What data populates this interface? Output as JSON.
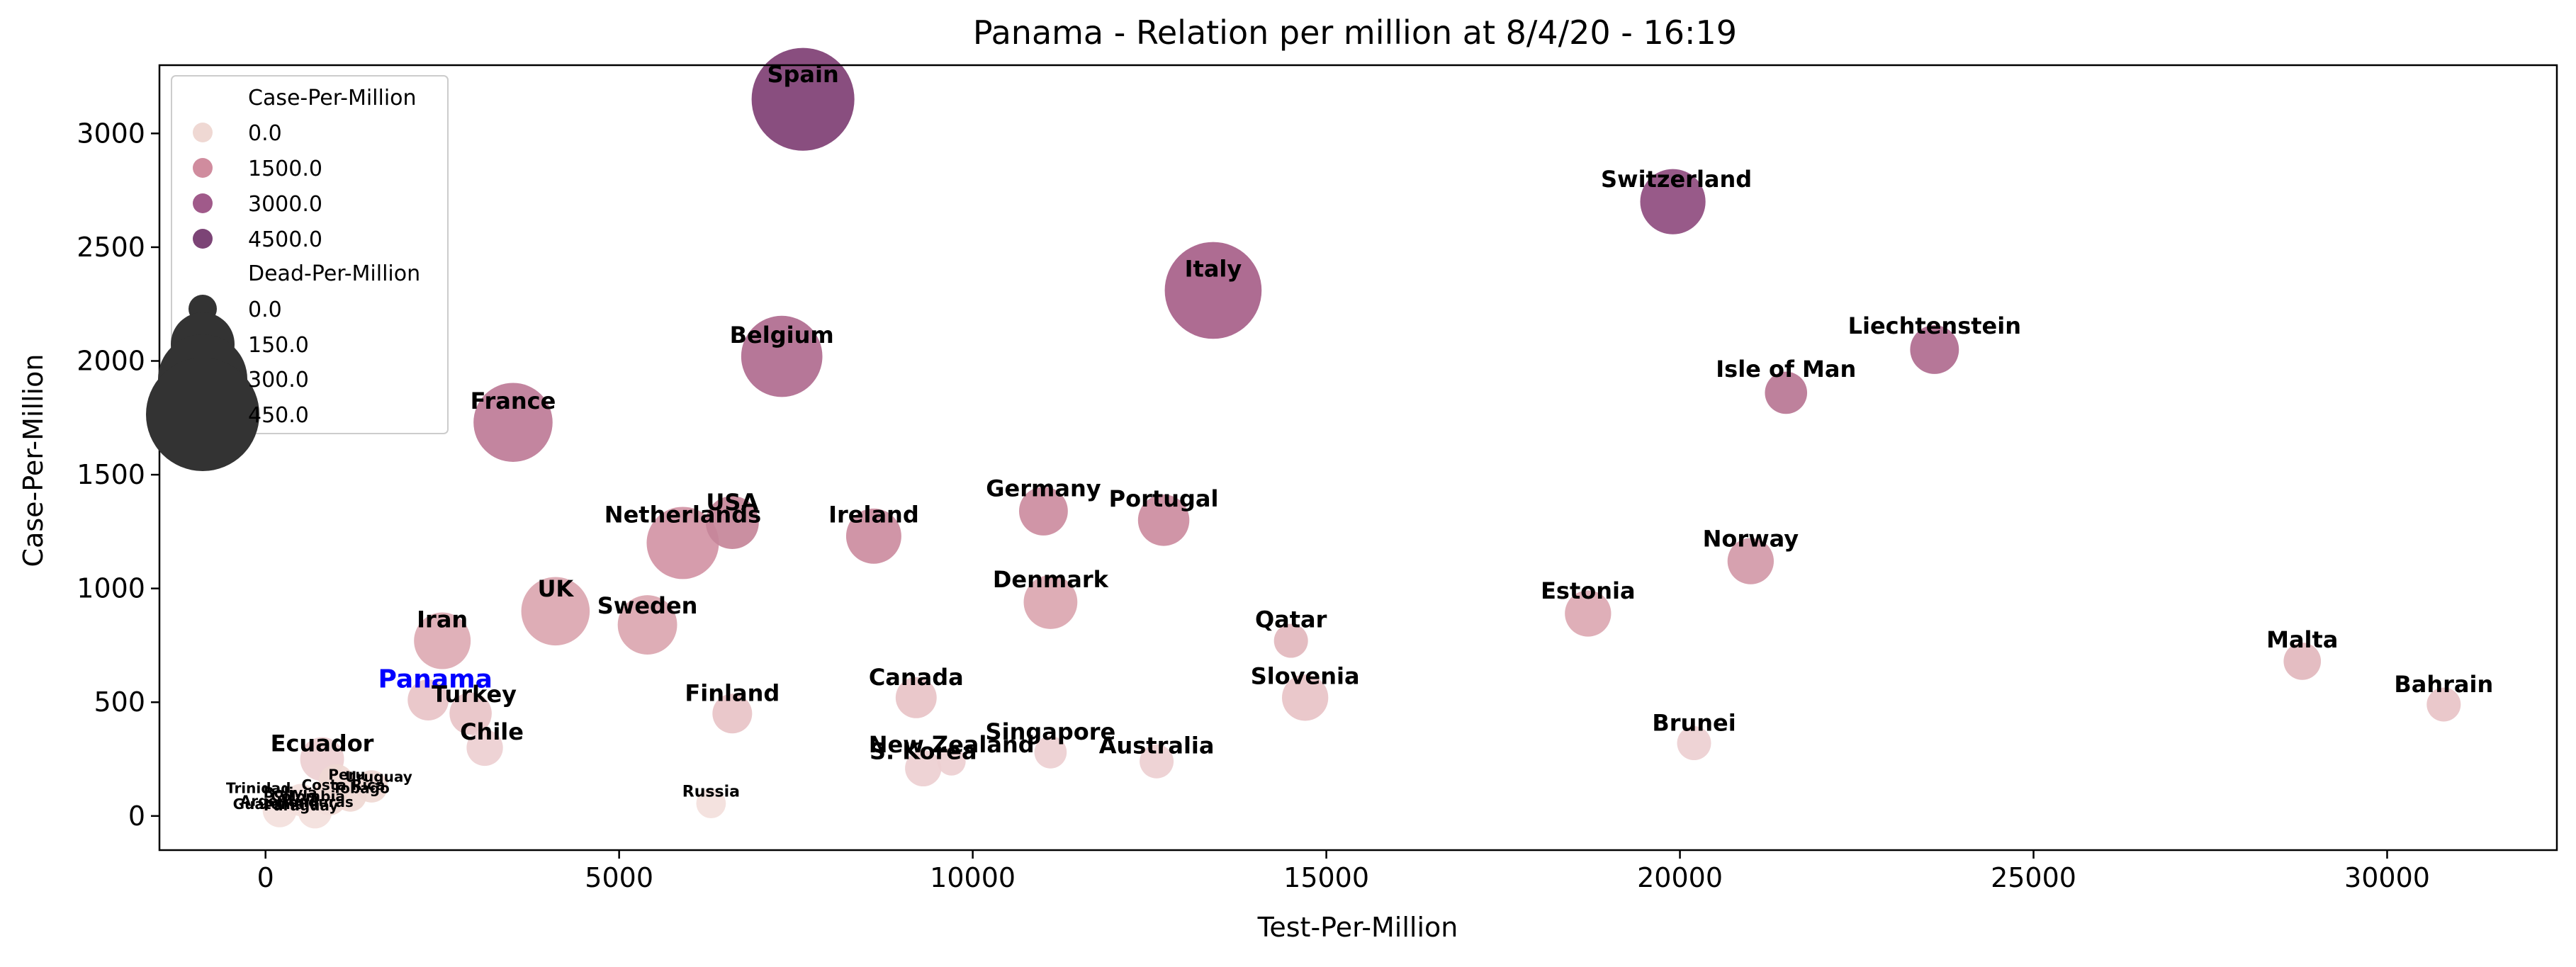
{
  "chart_data": {
    "type": "scatter",
    "title": "Panama - Relation per million at 8/4/20 - 16:19",
    "xlabel": "Test-Per-Million",
    "ylabel": "Case-Per-Million",
    "xlim": [
      -1500,
      32400
    ],
    "ylim": [
      -150,
      3300
    ],
    "x_ticks": [
      0,
      5000,
      10000,
      15000,
      20000,
      25000,
      30000
    ],
    "x_tick_labels": [
      "0",
      "5000",
      "10000",
      "15000",
      "20000",
      "25000",
      "30000"
    ],
    "y_ticks": [
      0,
      500,
      1000,
      1500,
      2000,
      2500,
      3000
    ],
    "y_tick_labels": [
      "0",
      "500",
      "1000",
      "1500",
      "2000",
      "2500",
      "3000"
    ],
    "grid": false,
    "legend_position": "top-left",
    "legend": {
      "hue_title": "Case-Per-Million",
      "hue_entries": [
        {
          "label": "0.0",
          "color": "#efd8d3"
        },
        {
          "label": "1500.0",
          "color": "#d08c9e"
        },
        {
          "label": "3000.0",
          "color": "#a05a8a"
        },
        {
          "label": "4500.0",
          "color": "#7c4476"
        }
      ],
      "size_title": "Dead-Per-Million",
      "size_entries": [
        {
          "label": "0.0",
          "radius": 20
        },
        {
          "label": "150.0",
          "radius": 45
        },
        {
          "label": "300.0",
          "radius": 63
        },
        {
          "label": "450.0",
          "radius": 80
        }
      ]
    },
    "highlight_color": "#0000ff",
    "points": [
      {
        "name": "Spain",
        "x": 7600,
        "y": 3150,
        "dead": 345,
        "color": "#7f3f74"
      },
      {
        "name": "Switzerland",
        "x": 19900,
        "y": 2700,
        "dead": 85,
        "color": "#8f4c7f"
      },
      {
        "name": "Italy",
        "x": 13400,
        "y": 2310,
        "dead": 292,
        "color": "#a76089"
      },
      {
        "name": "Liechtenstein",
        "x": 23600,
        "y": 2050,
        "dead": 26,
        "color": "#b06b8f"
      },
      {
        "name": "Belgium",
        "x": 7300,
        "y": 2020,
        "dead": 174,
        "color": "#b06b8f"
      },
      {
        "name": "Isle of Man",
        "x": 21500,
        "y": 1860,
        "dead": 12,
        "color": "#b97694"
      },
      {
        "name": "France",
        "x": 3500,
        "y": 1730,
        "dead": 160,
        "color": "#be7b97"
      },
      {
        "name": "Germany",
        "x": 11000,
        "y": 1340,
        "dead": 26,
        "color": "#cc8c9f"
      },
      {
        "name": "Portugal",
        "x": 12700,
        "y": 1300,
        "dead": 33,
        "color": "#cc8c9f"
      },
      {
        "name": "USA",
        "x": 6600,
        "y": 1290,
        "dead": 38,
        "color": "#c68699"
      },
      {
        "name": "Ireland",
        "x": 8600,
        "y": 1230,
        "dead": 45,
        "color": "#cc8c9f"
      },
      {
        "name": "Netherlands",
        "x": 5900,
        "y": 1200,
        "dead": 120,
        "color": "#d294a5"
      },
      {
        "name": "Norway",
        "x": 21000,
        "y": 1120,
        "dead": 20,
        "color": "#d299a8"
      },
      {
        "name": "Denmark",
        "x": 11100,
        "y": 940,
        "dead": 40,
        "color": "#dba6b0"
      },
      {
        "name": "UK",
        "x": 4100,
        "y": 900,
        "dead": 100,
        "color": "#dba6b0"
      },
      {
        "name": "Estonia",
        "x": 18700,
        "y": 890,
        "dead": 20,
        "color": "#dca8b2"
      },
      {
        "name": "Sweden",
        "x": 5400,
        "y": 840,
        "dead": 60,
        "color": "#dba6b0"
      },
      {
        "name": "Iran",
        "x": 2500,
        "y": 770,
        "dead": 50,
        "color": "#ddaab3"
      },
      {
        "name": "Qatar",
        "x": 14500,
        "y": 770,
        "dead": 2,
        "color": "#e2b7bd"
      },
      {
        "name": "Malta",
        "x": 28800,
        "y": 680,
        "dead": 5,
        "color": "#e2b7bd"
      },
      {
        "name": "Slovenia",
        "x": 14700,
        "y": 520,
        "dead": 20,
        "color": "#e8c3c7"
      },
      {
        "name": "Canada",
        "x": 9200,
        "y": 520,
        "dead": 10,
        "color": "#e8c3c7"
      },
      {
        "name": "Panama",
        "x": 2300,
        "y": 510,
        "dead": 10,
        "color": "#e8c3c7"
      },
      {
        "name": "Bahrain",
        "x": 30800,
        "y": 490,
        "dead": 2,
        "color": "#e8c3c7"
      },
      {
        "name": "Turkey",
        "x": 2900,
        "y": 450,
        "dead": 12,
        "color": "#e8c3c7"
      },
      {
        "name": "Finland",
        "x": 6600,
        "y": 450,
        "dead": 8,
        "color": "#e8c3c7"
      },
      {
        "name": "Brunei",
        "x": 20200,
        "y": 320,
        "dead": 2,
        "color": "#edcfd1"
      },
      {
        "name": "Chile",
        "x": 3100,
        "y": 300,
        "dead": 4,
        "color": "#edcfd1"
      },
      {
        "name": "Singapore",
        "x": 11100,
        "y": 280,
        "dead": 1,
        "color": "#edcfd1"
      },
      {
        "name": "New Zealand",
        "x": 9700,
        "y": 240,
        "dead": 0,
        "color": "#edcfd1"
      },
      {
        "name": "Ecuador",
        "x": 800,
        "y": 250,
        "dead": 15,
        "color": "#edcfd1"
      },
      {
        "name": "Australia",
        "x": 12600,
        "y": 240,
        "dead": 2,
        "color": "#edcfd1"
      },
      {
        "name": "S. Korea",
        "x": 9300,
        "y": 210,
        "dead": 4,
        "color": "#edcfd1"
      },
      {
        "name": "Peru",
        "x": 1000,
        "y": 150,
        "dead": 3,
        "color": "#efd8d3"
      },
      {
        "name": "Uruguay",
        "x": 1500,
        "y": 130,
        "dead": 1,
        "color": "#efd8d3"
      },
      {
        "name": "Trinidad and Tobago",
        "x": 900,
        "y": 80,
        "dead": 3,
        "color": "#efd8d3"
      },
      {
        "name": "Costa Rica",
        "x": 1200,
        "y": 90,
        "dead": 1,
        "color": "#efd8d3"
      },
      {
        "name": "Russia",
        "x": 6300,
        "y": 55,
        "dead": 0.1,
        "color": "#f3e0dc"
      },
      {
        "name": "",
        "x": 700,
        "y": 20,
        "dead": 2,
        "color": "#f3e0dc"
      },
      {
        "name": "",
        "x": 200,
        "y": 25,
        "dead": 2,
        "color": "#f3e0dc"
      },
      {
        "name": "",
        "x": 500,
        "y": 70,
        "dead": 1,
        "color": "#f3e0dc"
      }
    ],
    "labels": [
      {
        "text": "Spain",
        "x": 7600,
        "y": 3225,
        "size": 32,
        "color": "#000000"
      },
      {
        "text": "Switzerland",
        "x": 19950,
        "y": 2765,
        "size": 32,
        "color": "#000000"
      },
      {
        "text": "Italy",
        "x": 13400,
        "y": 2370,
        "size": 32,
        "color": "#000000"
      },
      {
        "text": "Liechtenstein",
        "x": 23600,
        "y": 2120,
        "size": 32,
        "color": "#000000"
      },
      {
        "text": "Belgium",
        "x": 7300,
        "y": 2080,
        "size": 32,
        "color": "#000000"
      },
      {
        "text": "Isle of Man",
        "x": 21500,
        "y": 1930,
        "size": 32,
        "color": "#000000"
      },
      {
        "text": "France",
        "x": 3500,
        "y": 1790,
        "size": 32,
        "color": "#000000"
      },
      {
        "text": "Germany",
        "x": 11000,
        "y": 1405,
        "size": 32,
        "color": "#000000"
      },
      {
        "text": "Portugal",
        "x": 12700,
        "y": 1360,
        "size": 32,
        "color": "#000000"
      },
      {
        "text": "USA",
        "x": 6600,
        "y": 1345,
        "size": 32,
        "color": "#000000"
      },
      {
        "text": "Ireland",
        "x": 8600,
        "y": 1290,
        "size": 32,
        "color": "#000000"
      },
      {
        "text": "Netherlands",
        "x": 5900,
        "y": 1290,
        "size": 32,
        "color": "#000000"
      },
      {
        "text": "Norway",
        "x": 21000,
        "y": 1185,
        "size": 32,
        "color": "#000000"
      },
      {
        "text": "Denmark",
        "x": 11100,
        "y": 1005,
        "size": 32,
        "color": "#000000"
      },
      {
        "text": "UK",
        "x": 4100,
        "y": 965,
        "size": 32,
        "color": "#000000"
      },
      {
        "text": "Estonia",
        "x": 18700,
        "y": 955,
        "size": 32,
        "color": "#000000"
      },
      {
        "text": "Sweden",
        "x": 5400,
        "y": 890,
        "size": 32,
        "color": "#000000"
      },
      {
        "text": "Iran",
        "x": 2500,
        "y": 830,
        "size": 32,
        "color": "#000000"
      },
      {
        "text": "Qatar",
        "x": 14500,
        "y": 830,
        "size": 32,
        "color": "#000000"
      },
      {
        "text": "Malta",
        "x": 28800,
        "y": 740,
        "size": 32,
        "color": "#000000"
      },
      {
        "text": "Slovenia",
        "x": 14700,
        "y": 580,
        "size": 32,
        "color": "#000000"
      },
      {
        "text": "Canada",
        "x": 9200,
        "y": 575,
        "size": 32,
        "color": "#000000"
      },
      {
        "text": "Panama",
        "x": 2400,
        "y": 565,
        "size": 36,
        "color": "#0000ff"
      },
      {
        "text": "Bahrain",
        "x": 30800,
        "y": 545,
        "size": 32,
        "color": "#000000"
      },
      {
        "text": "Turkey",
        "x": 2950,
        "y": 500,
        "size": 32,
        "color": "#000000"
      },
      {
        "text": "Finland",
        "x": 6600,
        "y": 505,
        "size": 32,
        "color": "#000000"
      },
      {
        "text": "Brunei",
        "x": 20200,
        "y": 375,
        "size": 32,
        "color": "#000000"
      },
      {
        "text": "Chile",
        "x": 3200,
        "y": 335,
        "size": 32,
        "color": "#000000"
      },
      {
        "text": "Singapore",
        "x": 11100,
        "y": 335,
        "size": 32,
        "color": "#000000"
      },
      {
        "text": "New Zealand",
        "x": 9700,
        "y": 280,
        "size": 32,
        "color": "#000000"
      },
      {
        "text": "Ecuador",
        "x": 800,
        "y": 285,
        "size": 32,
        "color": "#000000"
      },
      {
        "text": "Australia",
        "x": 12600,
        "y": 275,
        "size": 32,
        "color": "#000000"
      },
      {
        "text": "S. Korea",
        "x": 9300,
        "y": 250,
        "size": 32,
        "color": "#000000"
      },
      {
        "text": "Peru",
        "x": 1150,
        "y": 160,
        "size": 20,
        "color": "#000000"
      },
      {
        "text": "Uruguay",
        "x": 1600,
        "y": 150,
        "size": 20,
        "color": "#000000"
      },
      {
        "text": "Trinidad",
        "x": -100,
        "y": 100,
        "size": 20,
        "color": "#000000"
      },
      {
        "text": "Costa Rica",
        "x": 1100,
        "y": 115,
        "size": 20,
        "color": "#000000"
      },
      {
        "text": "Tobago",
        "x": 1350,
        "y": 100,
        "size": 20,
        "color": "#000000"
      },
      {
        "text": "Bolivia",
        "x": 350,
        "y": 80,
        "size": 20,
        "color": "#000000"
      },
      {
        "text": "Colombia",
        "x": 600,
        "y": 65,
        "size": 20,
        "color": "#000000"
      },
      {
        "text": "Argentina",
        "x": 200,
        "y": 45,
        "size": 20,
        "color": "#000000"
      },
      {
        "text": "Guatemala",
        "x": 150,
        "y": 30,
        "size": 20,
        "color": "#000000"
      },
      {
        "text": "Paraguay",
        "x": 500,
        "y": 25,
        "size": 20,
        "color": "#000000"
      },
      {
        "text": "Honduras",
        "x": 700,
        "y": 40,
        "size": 20,
        "color": "#000000"
      },
      {
        "text": "Russia",
        "x": 6300,
        "y": 85,
        "size": 22,
        "color": "#000000"
      }
    ]
  }
}
